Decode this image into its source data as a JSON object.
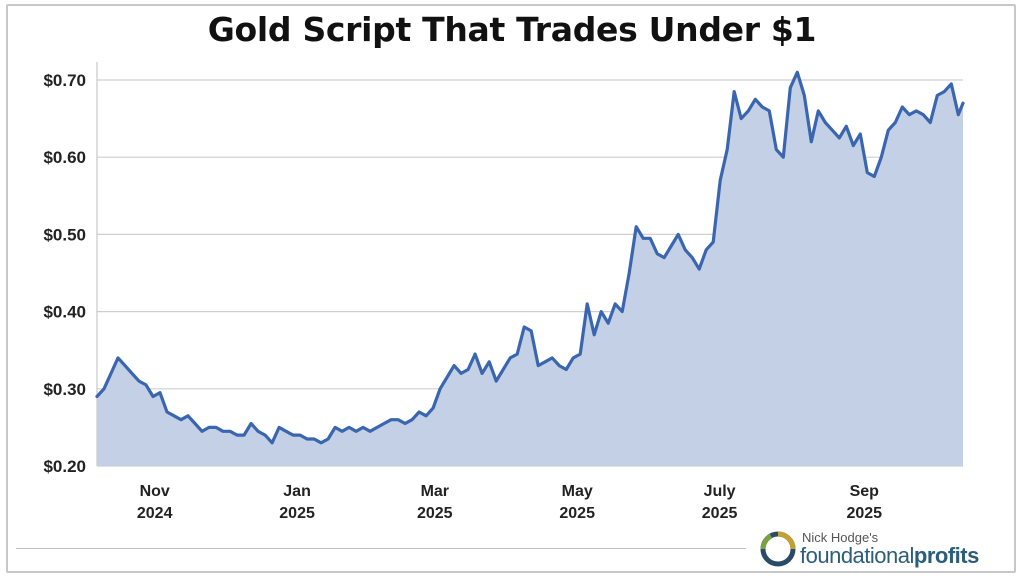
{
  "chart_data": {
    "type": "area",
    "title": "Gold Script That Trades Under $1",
    "xlabel": "",
    "ylabel": "",
    "ylim": [
      0.2,
      0.72
    ],
    "y_ticks": [
      "$0.20",
      "$0.30",
      "$0.40",
      "$0.50",
      "$0.60",
      "$0.70"
    ],
    "y_tick_values": [
      0.2,
      0.3,
      0.4,
      0.5,
      0.6,
      0.7
    ],
    "x_ticks": [
      {
        "month": "Nov",
        "year": "2024",
        "date": "2024-11-01"
      },
      {
        "month": "Jan",
        "year": "2025",
        "date": "2025-01-01"
      },
      {
        "month": "Mar",
        "year": "2025",
        "date": "2025-03-01"
      },
      {
        "month": "May",
        "year": "2025",
        "date": "2025-05-01"
      },
      {
        "month": "July",
        "year": "2025",
        "date": "2025-07-01"
      },
      {
        "month": "Sep",
        "year": "2025",
        "date": "2025-09-01"
      }
    ],
    "xlim": [
      "2024-10-09",
      "2025-10-15"
    ],
    "grid": "horizontal",
    "line_color": "#3a66b0",
    "fill_color": "#c3d0e6",
    "series": [
      {
        "x": [
          "2024-10-09",
          "2024-10-12",
          "2024-10-15",
          "2024-10-18",
          "2024-10-21",
          "2024-10-24",
          "2024-10-27",
          "2024-10-30",
          "2024-11-02",
          "2024-11-05",
          "2024-11-08",
          "2024-11-11",
          "2024-11-14",
          "2024-11-17",
          "2024-11-20",
          "2024-11-23",
          "2024-11-26",
          "2024-11-29",
          "2024-12-02",
          "2024-12-05",
          "2024-12-08",
          "2024-12-11",
          "2024-12-14",
          "2024-12-17",
          "2024-12-20",
          "2024-12-23",
          "2024-12-26",
          "2024-12-29",
          "2025-01-01",
          "2025-01-04",
          "2025-01-07",
          "2025-01-10",
          "2025-01-13",
          "2025-01-16",
          "2025-01-19",
          "2025-01-22",
          "2025-01-25",
          "2025-01-28",
          "2025-01-31",
          "2025-02-03",
          "2025-02-06",
          "2025-02-09",
          "2025-02-12",
          "2025-02-15",
          "2025-02-18",
          "2025-02-21",
          "2025-02-24",
          "2025-02-27",
          "2025-03-02",
          "2025-03-05",
          "2025-03-08",
          "2025-03-11",
          "2025-03-14",
          "2025-03-17",
          "2025-03-20",
          "2025-03-23",
          "2025-03-26",
          "2025-03-29",
          "2025-04-01",
          "2025-04-04",
          "2025-04-07",
          "2025-04-10",
          "2025-04-13",
          "2025-04-16",
          "2025-04-19",
          "2025-04-22",
          "2025-04-25",
          "2025-04-28",
          "2025-05-01",
          "2025-05-04",
          "2025-05-07",
          "2025-05-10",
          "2025-05-13",
          "2025-05-16",
          "2025-05-19",
          "2025-05-22",
          "2025-05-25",
          "2025-05-28",
          "2025-05-31",
          "2025-06-03",
          "2025-06-06",
          "2025-06-09",
          "2025-06-12",
          "2025-06-15",
          "2025-06-18",
          "2025-06-21",
          "2025-06-24",
          "2025-06-27",
          "2025-06-30",
          "2025-07-03",
          "2025-07-06",
          "2025-07-09",
          "2025-07-12",
          "2025-07-15",
          "2025-07-18",
          "2025-07-21",
          "2025-07-24",
          "2025-07-27",
          "2025-07-30",
          "2025-08-02",
          "2025-08-05",
          "2025-08-08",
          "2025-08-11",
          "2025-08-14",
          "2025-08-17",
          "2025-08-20",
          "2025-08-23",
          "2025-08-26",
          "2025-08-29",
          "2025-09-01",
          "2025-09-04",
          "2025-09-07",
          "2025-09-10",
          "2025-09-13",
          "2025-09-16",
          "2025-09-19",
          "2025-09-22",
          "2025-09-25",
          "2025-09-28",
          "2025-10-01",
          "2025-10-04",
          "2025-10-07",
          "2025-10-10",
          "2025-10-13",
          "2025-10-15"
        ],
        "values": [
          0.29,
          0.3,
          0.32,
          0.34,
          0.33,
          0.32,
          0.31,
          0.305,
          0.29,
          0.295,
          0.27,
          0.265,
          0.26,
          0.265,
          0.255,
          0.245,
          0.25,
          0.25,
          0.245,
          0.245,
          0.24,
          0.24,
          0.255,
          0.245,
          0.24,
          0.23,
          0.25,
          0.245,
          0.24,
          0.24,
          0.235,
          0.235,
          0.23,
          0.235,
          0.25,
          0.245,
          0.25,
          0.245,
          0.25,
          0.245,
          0.25,
          0.255,
          0.26,
          0.26,
          0.255,
          0.26,
          0.27,
          0.265,
          0.275,
          0.3,
          0.315,
          0.33,
          0.32,
          0.325,
          0.345,
          0.32,
          0.335,
          0.31,
          0.325,
          0.34,
          0.345,
          0.38,
          0.375,
          0.33,
          0.335,
          0.34,
          0.33,
          0.325,
          0.34,
          0.345,
          0.41,
          0.37,
          0.4,
          0.385,
          0.41,
          0.4,
          0.45,
          0.51,
          0.495,
          0.495,
          0.475,
          0.47,
          0.485,
          0.5,
          0.48,
          0.47,
          0.455,
          0.48,
          0.49,
          0.57,
          0.61,
          0.685,
          0.65,
          0.66,
          0.675,
          0.665,
          0.66,
          0.61,
          0.6,
          0.69,
          0.71,
          0.68,
          0.62,
          0.66,
          0.645,
          0.635,
          0.625,
          0.64,
          0.615,
          0.63,
          0.58,
          0.575,
          0.6,
          0.635,
          0.645,
          0.665,
          0.655,
          0.66,
          0.655,
          0.645,
          0.68,
          0.685,
          0.695,
          0.655,
          0.67
        ]
      }
    ]
  },
  "brand": {
    "top": "Nick Hodge's",
    "bottom_regular": "foundational",
    "bottom_bold": "profits"
  }
}
